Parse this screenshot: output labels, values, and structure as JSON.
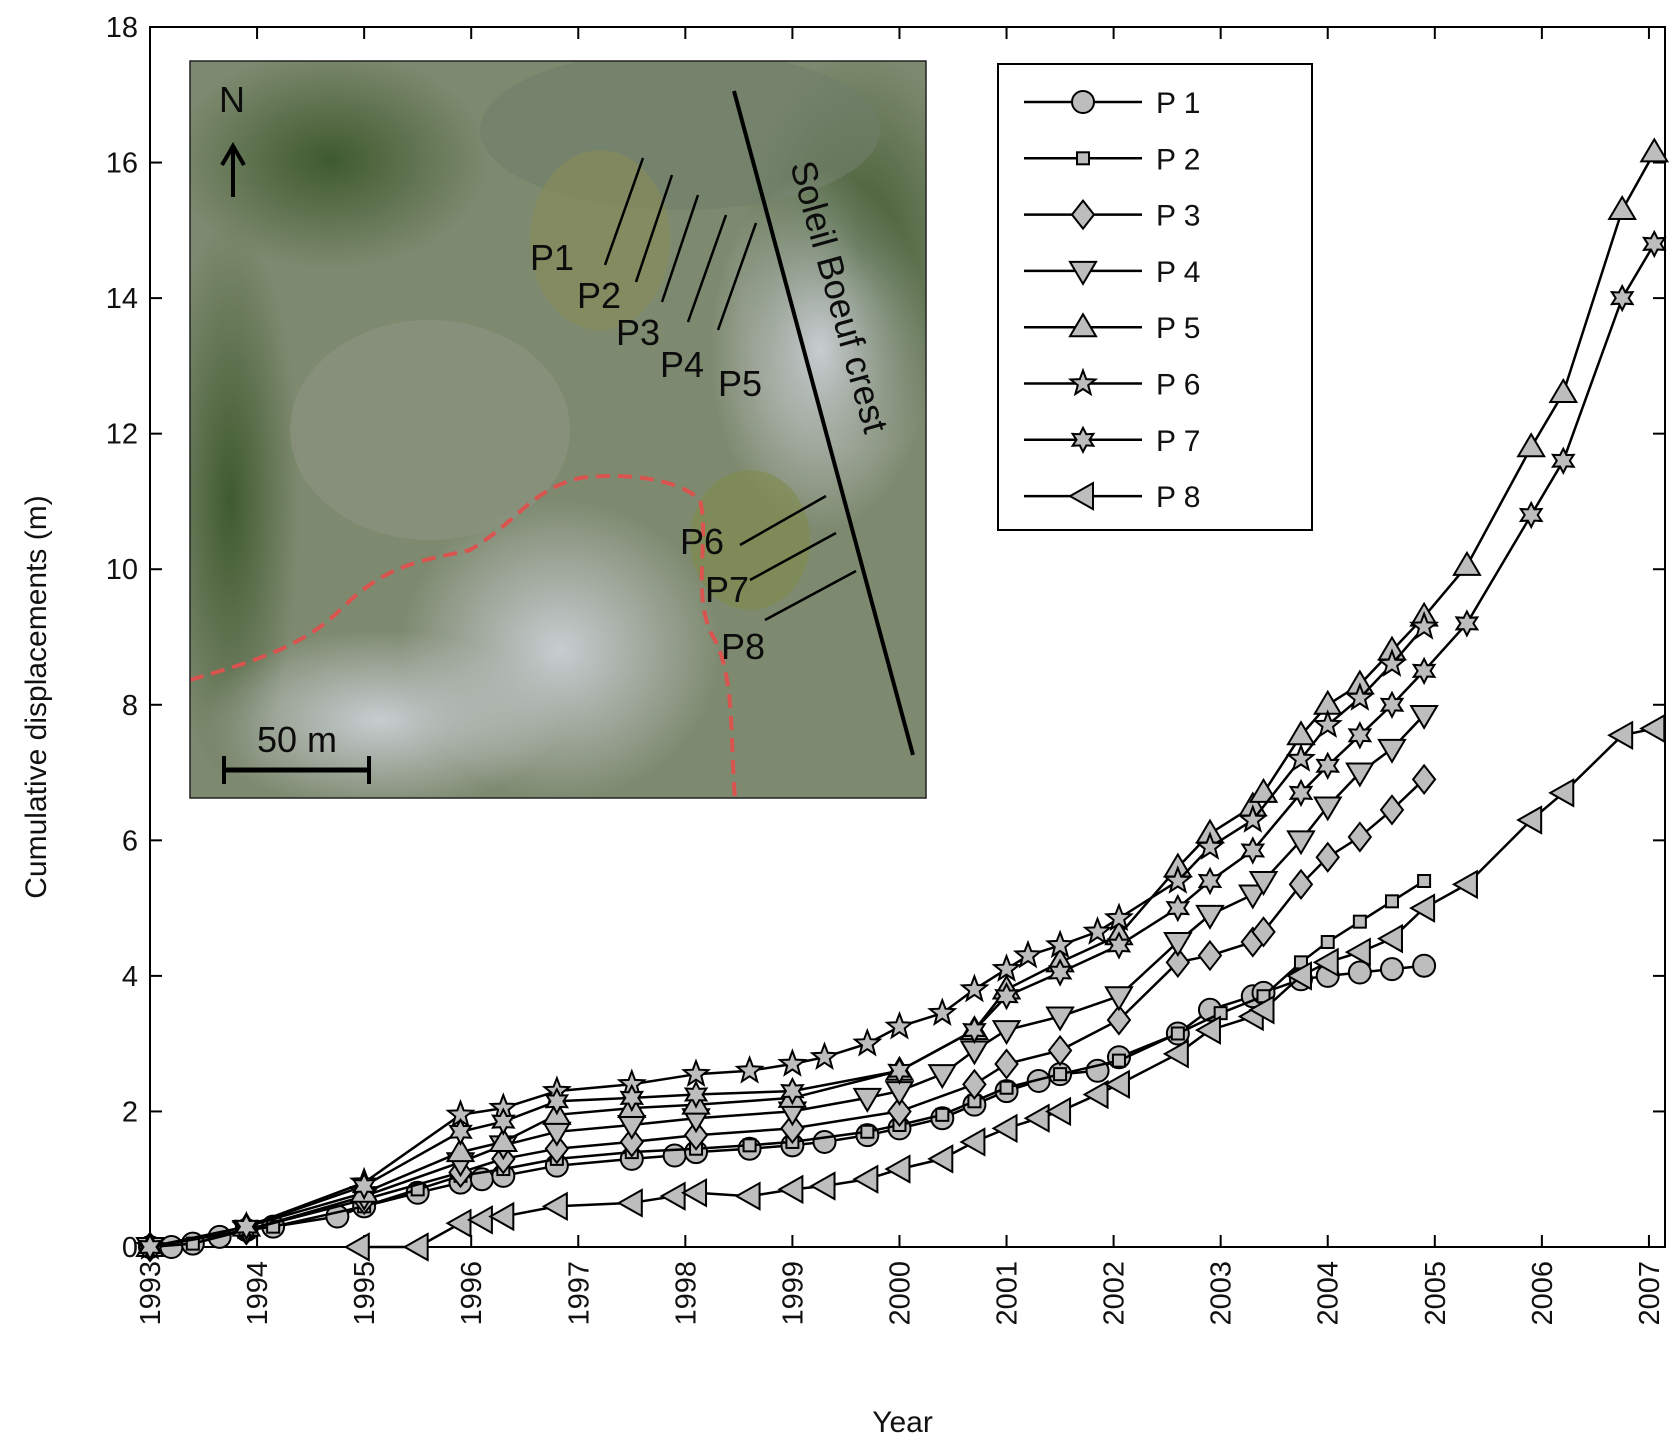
{
  "chart_data": {
    "type": "line",
    "x_label": "Year",
    "y_label": "Cumulative displacements (m)",
    "xlim": [
      1993,
      2007.15
    ],
    "xticks": [
      1993,
      1994,
      1995,
      1996,
      1997,
      1998,
      1999,
      2000,
      2001,
      2002,
      2003,
      2004,
      2005,
      2006,
      2007
    ],
    "ylim": [
      0,
      18
    ],
    "yticks": [
      0,
      2,
      4,
      6,
      8,
      10,
      12,
      14,
      16,
      18
    ],
    "legend": "upper right",
    "series": [
      {
        "name": "P 1",
        "marker": "circle",
        "color": "#bdbdbd",
        "x": [
          1993.0,
          1993.2,
          1993.4,
          1993.65,
          1993.9,
          1994.15,
          1994.75,
          1995.0,
          1995.5,
          1995.9,
          1996.1,
          1996.3,
          1996.8,
          1997.5,
          1997.9,
          1998.1,
          1998.6,
          1999.0,
          1999.3,
          1999.7,
          2000.0,
          2000.4,
          2000.7,
          2001.0,
          2001.3,
          2001.5,
          2001.85,
          2002.05,
          2002.6,
          2002.9,
          2003.3,
          2003.4,
          2003.75,
          2004.0,
          2004.3,
          2004.6,
          2004.9
        ],
        "values": [
          0,
          0,
          0.05,
          0.15,
          0.25,
          0.3,
          0.45,
          0.6,
          0.8,
          0.95,
          1.0,
          1.05,
          1.2,
          1.3,
          1.35,
          1.4,
          1.45,
          1.5,
          1.55,
          1.65,
          1.75,
          1.9,
          2.1,
          2.3,
          2.45,
          2.55,
          2.6,
          2.8,
          3.15,
          3.5,
          3.7,
          3.75,
          3.95,
          4.0,
          4.05,
          4.1,
          4.15
        ]
      },
      {
        "name": "P 2",
        "marker": "square",
        "color": "#bdbdbd",
        "x": [
          1993.0,
          1993.4,
          1993.9,
          1994.15,
          1995.0,
          1995.5,
          1995.9,
          1996.3,
          1996.8,
          1997.5,
          1998.1,
          1998.6,
          1999.0,
          1999.7,
          2000.0,
          2000.4,
          2000.7,
          2001.0,
          2001.5,
          2002.05,
          2002.6,
          2003.0,
          2003.4,
          2003.75,
          2004.0,
          2004.3,
          2004.6,
          2004.9
        ],
        "values": [
          0,
          0.05,
          0.25,
          0.3,
          0.6,
          0.85,
          1.05,
          1.15,
          1.3,
          1.4,
          1.45,
          1.5,
          1.55,
          1.7,
          1.8,
          1.95,
          2.15,
          2.35,
          2.55,
          2.75,
          3.15,
          3.45,
          3.7,
          4.2,
          4.5,
          4.8,
          5.1,
          5.4
        ]
      },
      {
        "name": "P 3",
        "marker": "diamond",
        "color": "#bdbdbd",
        "x": [
          1993.0,
          1993.9,
          1995.0,
          1995.9,
          1996.3,
          1996.8,
          1997.5,
          1998.1,
          1999.0,
          2000.0,
          2000.7,
          2001.0,
          2001.5,
          2002.05,
          2002.6,
          2002.9,
          2003.3,
          2003.4,
          2003.75,
          2004.0,
          2004.3,
          2004.6,
          2004.9
        ],
        "values": [
          0,
          0.25,
          0.7,
          1.1,
          1.3,
          1.45,
          1.55,
          1.65,
          1.75,
          2.0,
          2.4,
          2.7,
          2.9,
          3.35,
          4.2,
          4.3,
          4.5,
          4.65,
          5.35,
          5.75,
          6.05,
          6.45,
          6.9
        ]
      },
      {
        "name": "P 4",
        "marker": "triangle-down",
        "color": "#bdbdbd",
        "x": [
          1993.0,
          1993.9,
          1995.0,
          1995.9,
          1996.3,
          1996.8,
          1997.5,
          1998.1,
          1999.0,
          1999.7,
          2000.0,
          2000.4,
          2000.7,
          2001.0,
          2001.5,
          2002.05,
          2002.6,
          2002.9,
          2003.3,
          2003.4,
          2003.75,
          2004.0,
          2004.3,
          2004.6,
          2004.9
        ],
        "values": [
          0,
          0.25,
          0.75,
          1.25,
          1.5,
          1.7,
          1.8,
          1.9,
          2.0,
          2.2,
          2.3,
          2.55,
          2.9,
          3.2,
          3.4,
          3.7,
          4.5,
          4.9,
          5.2,
          5.4,
          6.0,
          6.5,
          7.0,
          7.35,
          7.85
        ]
      },
      {
        "name": "P 5",
        "marker": "triangle-up",
        "color": "#bdbdbd",
        "x": [
          1993.0,
          1993.9,
          1995.0,
          1995.9,
          1996.3,
          1996.8,
          1997.5,
          1998.1,
          1999.0,
          2000.0,
          2000.7,
          2001.0,
          2001.5,
          2002.05,
          2002.6,
          2002.9,
          2003.3,
          2003.4,
          2003.75,
          2004.0,
          2004.3,
          2004.6,
          2004.9,
          2005.3,
          2005.9,
          2006.2,
          2006.75,
          2007.05
        ],
        "values": [
          0,
          0.3,
          0.8,
          1.4,
          1.55,
          1.95,
          2.05,
          2.1,
          2.2,
          2.6,
          3.2,
          3.8,
          4.2,
          4.6,
          5.6,
          6.1,
          6.5,
          6.7,
          7.55,
          8.0,
          8.3,
          8.8,
          9.3,
          10.05,
          11.8,
          12.6,
          15.3,
          16.15
        ]
      },
      {
        "name": "P 6",
        "marker": "star",
        "color": "#bdbdbd",
        "x": [
          1993.0,
          1993.9,
          1995.0,
          1995.9,
          1996.3,
          1996.8,
          1997.5,
          1998.1,
          1998.6,
          1999.0,
          1999.3,
          1999.7,
          2000.0,
          2000.4,
          2000.7,
          2001.0,
          2001.2,
          2001.5,
          2001.85,
          2002.05,
          2002.6,
          2002.9,
          2003.3,
          2003.75,
          2004.0,
          2004.3,
          2004.6,
          2004.9
        ],
        "values": [
          0,
          0.3,
          0.95,
          1.95,
          2.05,
          2.3,
          2.4,
          2.55,
          2.6,
          2.7,
          2.8,
          3.0,
          3.25,
          3.45,
          3.8,
          4.1,
          4.3,
          4.45,
          4.65,
          4.85,
          5.4,
          5.9,
          6.3,
          7.2,
          7.7,
          8.1,
          8.6,
          9.15
        ]
      },
      {
        "name": "P 7",
        "marker": "hexstar",
        "color": "#bdbdbd",
        "x": [
          1993.0,
          1993.9,
          1995.0,
          1995.9,
          1996.3,
          1996.8,
          1997.5,
          1998.1,
          1999.0,
          2000.0,
          2000.7,
          2001.0,
          2001.5,
          2002.05,
          2002.6,
          2002.9,
          2003.3,
          2003.75,
          2004.0,
          2004.3,
          2004.6,
          2004.9,
          2005.3,
          2005.9,
          2006.2,
          2006.75,
          2007.05
        ],
        "values": [
          0,
          0.3,
          0.9,
          1.7,
          1.85,
          2.15,
          2.2,
          2.25,
          2.3,
          2.6,
          3.2,
          3.7,
          4.05,
          4.45,
          5.0,
          5.4,
          5.85,
          6.7,
          7.1,
          7.55,
          8.0,
          8.5,
          9.2,
          10.8,
          11.6,
          14.0,
          14.8
        ]
      },
      {
        "name": "P 8",
        "marker": "triangle-left",
        "color": "#bdbdbd",
        "x": [
          1994.95,
          1995.5,
          1995.9,
          1996.1,
          1996.3,
          1996.8,
          1997.5,
          1997.9,
          1998.1,
          1998.6,
          1999.0,
          1999.3,
          1999.7,
          2000.0,
          2000.4,
          2000.7,
          2001.0,
          2001.3,
          2001.5,
          2001.85,
          2002.05,
          2002.6,
          2002.9,
          2003.3,
          2003.4,
          2003.75,
          2004.0,
          2004.3,
          2004.6,
          2004.9,
          2005.3,
          2005.9,
          2006.2,
          2006.75,
          2007.05
        ],
        "values": [
          0,
          0,
          0.35,
          0.4,
          0.45,
          0.6,
          0.65,
          0.75,
          0.8,
          0.75,
          0.85,
          0.9,
          1.0,
          1.15,
          1.3,
          1.55,
          1.75,
          1.9,
          2.0,
          2.25,
          2.4,
          2.85,
          3.2,
          3.4,
          3.5,
          4.0,
          4.2,
          4.35,
          4.55,
          5.0,
          5.35,
          6.3,
          6.7,
          7.55,
          7.65
        ]
      }
    ],
    "inset": {
      "north": "N",
      "crest": "Soleil Boeuf crest",
      "scale": "50 m",
      "profiles": [
        "P1",
        "P2",
        "P3",
        "P4",
        "P5",
        "P6",
        "P7",
        "P8"
      ]
    }
  }
}
